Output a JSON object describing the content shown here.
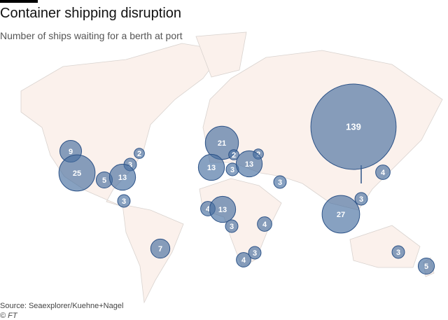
{
  "header": {
    "title": "Container shipping disruption",
    "subtitle": "Number of ships waiting for a berth at port"
  },
  "bubbles": [
    {
      "value": 9
    },
    {
      "value": 25
    },
    {
      "value": 2
    },
    {
      "value": 3
    },
    {
      "value": 5
    },
    {
      "value": 13
    },
    {
      "value": 3
    },
    {
      "value": 7
    },
    {
      "value": 21
    },
    {
      "value": 2
    },
    {
      "value": 2
    },
    {
      "value": 13
    },
    {
      "value": 3
    },
    {
      "value": 13
    },
    {
      "value": 3
    },
    {
      "value": 4
    },
    {
      "value": 13
    },
    {
      "value": 3
    },
    {
      "value": 4
    },
    {
      "value": 4
    },
    {
      "value": 3
    },
    {
      "value": 139
    },
    {
      "value": 4
    },
    {
      "value": 3
    },
    {
      "value": 27
    },
    {
      "value": 3
    },
    {
      "value": 5
    }
  ],
  "footer": {
    "source": "Source: Seaexplorer/Kuehne+Nagel",
    "credit": "© FT"
  }
}
